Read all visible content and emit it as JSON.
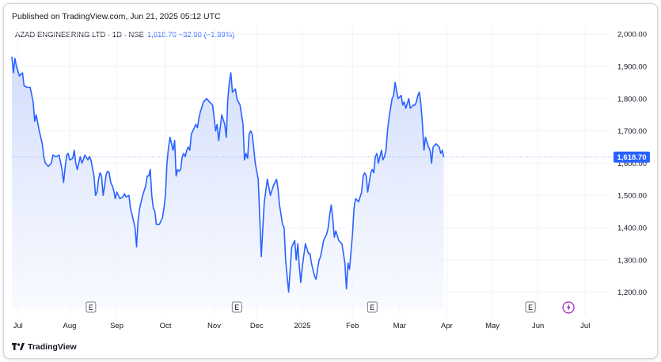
{
  "published_text": "Published on TradingView.com, Jun 21, 2025 05:12 UTC",
  "legend": {
    "symbol": "AZAD ENGINEERING LTD · 1D · NSE",
    "values": "1,618.70  −32.90 (−1.99%)"
  },
  "footer": {
    "brand": "TradingView"
  },
  "colors": {
    "line": "#2962ff",
    "fill_top": "#c9d6fb",
    "fill_bottom": "#f4f7ff",
    "price_tag_bg": "#2962ff",
    "text": "#131722",
    "grid": "#f0f3fa",
    "dividend_icon": "#9c27b0"
  },
  "chart_data": {
    "type": "area",
    "title": "AZAD ENGINEERING LTD · 1D · NSE",
    "ylim": [
      1150,
      2020
    ],
    "y_ticks": [
      1200,
      1300,
      1400,
      1500,
      1600,
      1700,
      1800,
      1900,
      2000
    ],
    "y_tick_labels": [
      "1,200.00",
      "1,300.00",
      "1,400.00",
      "1,500.00",
      "1,600.00",
      "1,700.00",
      "1,800.00",
      "1,900.00",
      "2,000.00"
    ],
    "x_labels": [
      {
        "label": "Jul",
        "t": 4
      },
      {
        "label": "Aug",
        "t": 38
      },
      {
        "label": "Sep",
        "t": 69
      },
      {
        "label": "Oct",
        "t": 101
      },
      {
        "label": "Nov",
        "t": 133
      },
      {
        "label": "Dec",
        "t": 161
      },
      {
        "label": "2025",
        "t": 191
      },
      {
        "label": "Feb",
        "t": 224
      },
      {
        "label": "Mar",
        "t": 255
      },
      {
        "label": "Apr",
        "t": 286
      },
      {
        "label": "May",
        "t": 316
      },
      {
        "label": "Jun",
        "t": 346
      },
      {
        "label": "Jul",
        "t": 377
      }
    ],
    "t_range": [
      0,
      380
    ],
    "last_price": 1618.7,
    "last_price_label": "1,618.70",
    "earnings_markers": [
      {
        "label": "E",
        "t": 52
      },
      {
        "label": "E",
        "t": 148
      },
      {
        "label": "E",
        "t": 237
      },
      {
        "label": "E",
        "t": 341
      }
    ],
    "dividend_marker": {
      "t": 366
    },
    "series": [
      {
        "values": [
          [
            0,
            1930
          ],
          [
            1,
            1880
          ],
          [
            2,
            1925
          ],
          [
            3,
            1900
          ],
          [
            5,
            1870
          ],
          [
            7,
            1880
          ],
          [
            8,
            1840
          ],
          [
            10,
            1835
          ],
          [
            12,
            1835
          ],
          [
            14,
            1790
          ],
          [
            15,
            1730
          ],
          [
            16,
            1750
          ],
          [
            18,
            1700
          ],
          [
            20,
            1660
          ],
          [
            21,
            1620
          ],
          [
            22,
            1600
          ],
          [
            24,
            1590
          ],
          [
            25,
            1595
          ],
          [
            26,
            1600
          ],
          [
            27,
            1625
          ],
          [
            29,
            1620
          ],
          [
            31,
            1625
          ],
          [
            33,
            1580
          ],
          [
            34,
            1540
          ],
          [
            35,
            1585
          ],
          [
            36,
            1625
          ],
          [
            37,
            1630
          ],
          [
            38,
            1610
          ],
          [
            40,
            1615
          ],
          [
            41,
            1640
          ],
          [
            42,
            1600
          ],
          [
            43,
            1580
          ],
          [
            44,
            1600
          ],
          [
            45,
            1620
          ],
          [
            46,
            1600
          ],
          [
            47,
            1610
          ],
          [
            48,
            1625
          ],
          [
            50,
            1610
          ],
          [
            51,
            1620
          ],
          [
            52,
            1610
          ],
          [
            54,
            1560
          ],
          [
            55,
            1500
          ],
          [
            56,
            1510
          ],
          [
            57,
            1550
          ],
          [
            58,
            1570
          ],
          [
            59,
            1560
          ],
          [
            60,
            1500
          ],
          [
            61,
            1530
          ],
          [
            62,
            1565
          ],
          [
            63,
            1575
          ],
          [
            64,
            1570
          ],
          [
            65,
            1540
          ],
          [
            66,
            1530
          ],
          [
            67,
            1515
          ],
          [
            68,
            1490
          ],
          [
            69,
            1510
          ],
          [
            71,
            1490
          ],
          [
            73,
            1495
          ],
          [
            74,
            1505
          ],
          [
            75,
            1495
          ],
          [
            77,
            1500
          ],
          [
            78,
            1460
          ],
          [
            79,
            1440
          ],
          [
            81,
            1400
          ],
          [
            82,
            1340
          ],
          [
            83,
            1420
          ],
          [
            84,
            1460
          ],
          [
            86,
            1500
          ],
          [
            88,
            1530
          ],
          [
            89,
            1560
          ],
          [
            90,
            1560
          ],
          [
            91,
            1580
          ],
          [
            92,
            1500
          ],
          [
            93,
            1460
          ],
          [
            94,
            1450
          ],
          [
            95,
            1410
          ],
          [
            97,
            1410
          ],
          [
            99,
            1430
          ],
          [
            100,
            1460
          ],
          [
            101,
            1500
          ],
          [
            102,
            1600
          ],
          [
            103,
            1650
          ],
          [
            104,
            1680
          ],
          [
            105,
            1660
          ],
          [
            106,
            1640
          ],
          [
            107,
            1670
          ],
          [
            108,
            1560
          ],
          [
            109,
            1580
          ],
          [
            110,
            1575
          ],
          [
            111,
            1580
          ],
          [
            112,
            1620
          ],
          [
            113,
            1630
          ],
          [
            114,
            1620
          ],
          [
            115,
            1640
          ],
          [
            116,
            1650
          ],
          [
            117,
            1640
          ],
          [
            118,
            1690
          ],
          [
            119,
            1700
          ],
          [
            121,
            1720
          ],
          [
            122,
            1710
          ],
          [
            123,
            1740
          ],
          [
            124,
            1760
          ],
          [
            126,
            1790
          ],
          [
            128,
            1800
          ],
          [
            130,
            1790
          ],
          [
            132,
            1780
          ],
          [
            134,
            1700
          ],
          [
            135,
            1720
          ],
          [
            136,
            1670
          ],
          [
            138,
            1750
          ],
          [
            140,
            1720
          ],
          [
            141,
            1680
          ],
          [
            142,
            1800
          ],
          [
            143,
            1850
          ],
          [
            144,
            1880
          ],
          [
            145,
            1820
          ],
          [
            147,
            1830
          ],
          [
            148,
            1800
          ],
          [
            150,
            1780
          ],
          [
            152,
            1720
          ],
          [
            153,
            1610
          ],
          [
            154,
            1630
          ],
          [
            155,
            1615
          ],
          [
            156,
            1690
          ],
          [
            157,
            1700
          ],
          [
            158,
            1690
          ],
          [
            159,
            1650
          ],
          [
            160,
            1600
          ],
          [
            162,
            1550
          ],
          [
            164,
            1310
          ],
          [
            165,
            1400
          ],
          [
            166,
            1480
          ],
          [
            168,
            1550
          ],
          [
            170,
            1500
          ],
          [
            172,
            1530
          ],
          [
            174,
            1550
          ],
          [
            175,
            1520
          ],
          [
            176,
            1470
          ],
          [
            178,
            1410
          ],
          [
            179,
            1400
          ],
          [
            180,
            1300
          ],
          [
            182,
            1200
          ],
          [
            184,
            1340
          ],
          [
            186,
            1360
          ],
          [
            187,
            1300
          ],
          [
            188,
            1350
          ],
          [
            189,
            1280
          ],
          [
            190,
            1230
          ],
          [
            191,
            1280
          ],
          [
            193,
            1350
          ],
          [
            195,
            1320
          ],
          [
            196,
            1320
          ],
          [
            197,
            1290
          ],
          [
            199,
            1250
          ],
          [
            200,
            1240
          ],
          [
            201,
            1270
          ],
          [
            202,
            1300
          ],
          [
            203,
            1310
          ],
          [
            205,
            1360
          ],
          [
            207,
            1380
          ],
          [
            208,
            1400
          ],
          [
            209,
            1440
          ],
          [
            210,
            1470
          ],
          [
            211,
            1430
          ],
          [
            212,
            1370
          ],
          [
            213,
            1390
          ],
          [
            215,
            1360
          ],
          [
            217,
            1350
          ],
          [
            219,
            1290
          ],
          [
            220,
            1210
          ],
          [
            221,
            1290
          ],
          [
            222,
            1270
          ],
          [
            224,
            1380
          ],
          [
            225,
            1460
          ],
          [
            226,
            1490
          ],
          [
            228,
            1480
          ],
          [
            230,
            1510
          ],
          [
            231,
            1560
          ],
          [
            232,
            1570
          ],
          [
            233,
            1560
          ],
          [
            234,
            1510
          ],
          [
            235,
            1540
          ],
          [
            236,
            1570
          ],
          [
            237,
            1580
          ],
          [
            238,
            1570
          ],
          [
            239,
            1620
          ],
          [
            240,
            1630
          ],
          [
            241,
            1600
          ],
          [
            242,
            1620
          ],
          [
            243,
            1640
          ],
          [
            244,
            1610
          ],
          [
            245,
            1620
          ],
          [
            246,
            1640
          ],
          [
            247,
            1700
          ],
          [
            248,
            1740
          ],
          [
            249,
            1770
          ],
          [
            250,
            1800
          ],
          [
            251,
            1810
          ],
          [
            252,
            1850
          ],
          [
            254,
            1800
          ],
          [
            256,
            1810
          ],
          [
            257,
            1780
          ],
          [
            258,
            1790
          ],
          [
            259,
            1770
          ],
          [
            261,
            1800
          ],
          [
            262,
            1770
          ],
          [
            264,
            1780
          ],
          [
            265,
            1780
          ],
          [
            266,
            1790
          ],
          [
            267,
            1810
          ],
          [
            268,
            1820
          ],
          [
            269,
            1780
          ],
          [
            270,
            1720
          ],
          [
            271,
            1640
          ],
          [
            272,
            1680
          ],
          [
            274,
            1650
          ],
          [
            275,
            1640
          ],
          [
            276,
            1600
          ],
          [
            277,
            1650
          ],
          [
            279,
            1660
          ],
          [
            281,
            1650
          ],
          [
            282,
            1630
          ],
          [
            283,
            1640
          ],
          [
            284,
            1619
          ]
        ]
      }
    ]
  }
}
